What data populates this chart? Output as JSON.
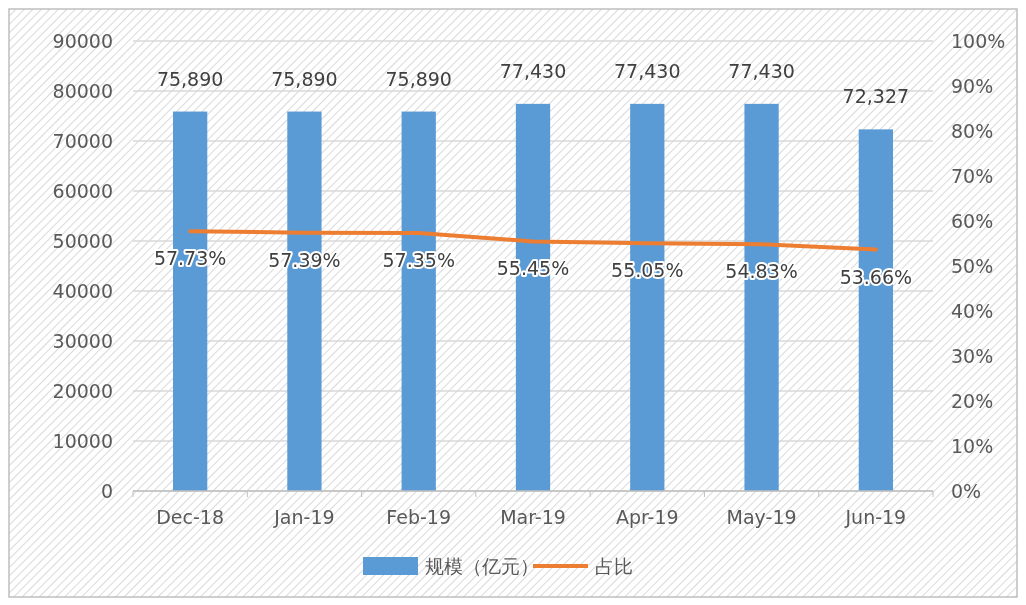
{
  "chart_data": {
    "type": "bar",
    "categories": [
      "Dec-18",
      "Jan-19",
      "Feb-19",
      "Mar-19",
      "Apr-19",
      "May-19",
      "Jun-19"
    ],
    "series": [
      {
        "name": "规模（亿元）",
        "color": "#5b9bd5",
        "values": [
          75890,
          75890,
          75890,
          77430,
          77430,
          77430,
          72327
        ],
        "value_labels": [
          "75,890",
          "75,890",
          "75,890",
          "77,430",
          "77,430",
          "77,430",
          "72,327"
        ]
      },
      {
        "name": "占比",
        "type": "line",
        "axis": "y2",
        "color": "#ed7d31",
        "values": [
          57.73,
          57.39,
          57.35,
          55.45,
          55.05,
          54.83,
          53.66
        ],
        "value_labels": [
          "57.73%",
          "57.39%",
          "57.35%",
          "55.45%",
          "55.05%",
          "54.83%",
          "53.66%"
        ]
      }
    ],
    "ylim": [
      0,
      90000
    ],
    "yticks": [
      0,
      10000,
      20000,
      30000,
      40000,
      50000,
      60000,
      70000,
      80000,
      90000
    ],
    "y2lim": [
      0,
      100
    ],
    "y2ticks": [
      {
        "value": 0,
        "label": "0%"
      },
      {
        "value": 10,
        "label": "10%"
      },
      {
        "value": 20,
        "label": "20%"
      },
      {
        "value": 30,
        "label": "30%"
      },
      {
        "value": 40,
        "label": "40%"
      },
      {
        "value": 50,
        "label": "50%"
      },
      {
        "value": 60,
        "label": "60%"
      },
      {
        "value": 70,
        "label": "70%"
      },
      {
        "value": 80,
        "label": "80%"
      },
      {
        "value": 90,
        "label": "90%"
      },
      {
        "value": 100,
        "label": "100%"
      }
    ],
    "grid": "y",
    "legend": "bottom",
    "marker": "none",
    "line_style": "solid"
  }
}
